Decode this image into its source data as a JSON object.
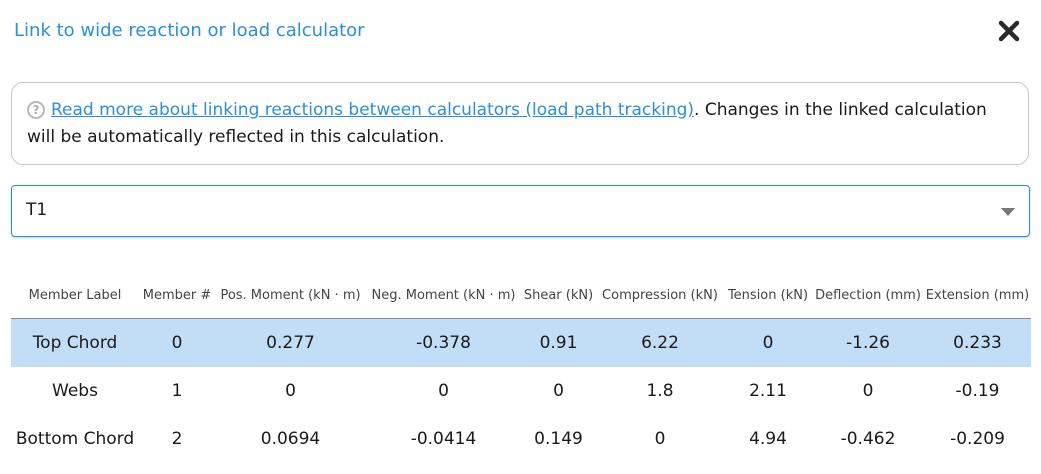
{
  "dialog": {
    "title": "Link to wide reaction or load calculator",
    "close_icon": "close-icon",
    "info": {
      "help_icon": "question-circle-icon",
      "help_glyph": "?",
      "link_text": "Read more about linking reactions between calculators (load path tracking)",
      "text": ". Changes in the linked calculation will be automatically reflected in this calculation."
    },
    "select": {
      "value": "T1"
    }
  },
  "table": {
    "headers": [
      "Member Label",
      "Member #",
      "Pos. Moment (kN · m)",
      "Neg. Moment (kN · m)",
      "Shear (kN)",
      "Compression (kN)",
      "Tension (kN)",
      "Deflection (mm)",
      "Extension (mm)"
    ],
    "rows": [
      {
        "label": "Top Chord",
        "member": "0",
        "pos_moment": "0.277",
        "neg_moment": "-0.378",
        "shear": "0.91",
        "compression": "6.22",
        "tension": "0",
        "deflection": "-1.26",
        "extension": "0.233",
        "selected": true
      },
      {
        "label": "Webs",
        "member": "1",
        "pos_moment": "0",
        "neg_moment": "0",
        "shear": "0",
        "compression": "1.8",
        "tension": "2.11",
        "deflection": "0",
        "extension": "-0.19",
        "selected": false
      },
      {
        "label": "Bottom Chord",
        "member": "2",
        "pos_moment": "0.0694",
        "neg_moment": "-0.0414",
        "shear": "0.149",
        "compression": "0",
        "tension": "4.94",
        "deflection": "-0.462",
        "extension": "-0.209",
        "selected": false
      }
    ]
  },
  "colors": {
    "accent": "#2a90d8",
    "selected_row": "#c2def6"
  }
}
